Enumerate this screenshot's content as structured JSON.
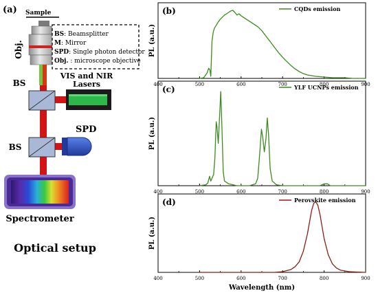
{
  "setup": {
    "panel_label": "(a)",
    "sample_label": "Sample",
    "obj_label": "Obj.",
    "legend": [
      {
        "abbr": "BS",
        "desc": ": Beamsplitter"
      },
      {
        "abbr": "M",
        "desc": ": Mirror"
      },
      {
        "abbr": "SPD",
        "desc": ": Single photon detector"
      },
      {
        "abbr": "Obj.",
        "desc": " : microscope objective"
      }
    ],
    "lasers_label_line1": "VIS and NIR",
    "lasers_label_line2": "Lasers",
    "bs_label": "BS",
    "spd_label": "SPD",
    "spectrometer_label": "Spectrometer",
    "caption": "Optical setup",
    "colors": {
      "beam": "#d21414",
      "laser_body": "#2cb84a",
      "spd_body": "#2f55c8",
      "bs_face": "#aab8d8"
    }
  },
  "chart_data": [
    {
      "type": "line",
      "panel_label": "(b)",
      "legend": "CQDs emission",
      "color": "#3a8a1e",
      "xlim": [
        400,
        900
      ],
      "x_ticks": [
        400,
        500,
        600,
        700,
        800,
        900
      ],
      "ylabel": "PL (a.u.)",
      "xlabel": "",
      "x": [
        500,
        510,
        518,
        522,
        525,
        527,
        530,
        533,
        536,
        540,
        545,
        550,
        555,
        560,
        565,
        570,
        575,
        580,
        585,
        590,
        595,
        600,
        610,
        620,
        630,
        640,
        650,
        660,
        670,
        680,
        690,
        700,
        710,
        720,
        730,
        740,
        750,
        760,
        780,
        800,
        820,
        850,
        870,
        900
      ],
      "y": [
        0.0,
        0.01,
        0.08,
        0.15,
        0.12,
        0.03,
        0.55,
        0.68,
        0.74,
        0.78,
        0.83,
        0.87,
        0.9,
        0.93,
        0.95,
        0.97,
        0.99,
        1.0,
        0.97,
        0.93,
        0.95,
        0.92,
        0.88,
        0.84,
        0.8,
        0.76,
        0.7,
        0.62,
        0.54,
        0.46,
        0.38,
        0.31,
        0.25,
        0.19,
        0.14,
        0.1,
        0.07,
        0.05,
        0.03,
        0.02,
        0.01,
        0.01,
        0.0,
        0.0
      ]
    },
    {
      "type": "line",
      "panel_label": "(c)",
      "legend": "YLF UCNPs emission",
      "color": "#3a8a1e",
      "xlim": [
        400,
        900
      ],
      "x_ticks": [
        400,
        500,
        600,
        700,
        800,
        900
      ],
      "ylabel": "PL (a.u.)",
      "xlabel": "",
      "x": [
        500,
        515,
        520,
        524,
        527,
        530,
        534,
        537,
        540,
        542,
        545,
        548,
        551,
        554,
        557,
        560,
        570,
        590,
        620,
        635,
        640,
        645,
        649,
        652,
        656,
        660,
        663,
        666,
        670,
        675,
        685,
        700,
        790,
        800,
        808,
        815,
        900
      ],
      "y": [
        0.0,
        0.01,
        0.03,
        0.1,
        0.05,
        0.08,
        0.12,
        0.3,
        0.68,
        0.62,
        0.45,
        0.72,
        1.0,
        0.6,
        0.15,
        0.05,
        0.02,
        0.0,
        0.0,
        0.02,
        0.08,
        0.35,
        0.6,
        0.52,
        0.36,
        0.5,
        0.72,
        0.55,
        0.18,
        0.05,
        0.01,
        0.0,
        0.0,
        0.02,
        0.02,
        0.0,
        0.0
      ]
    },
    {
      "type": "line",
      "panel_label": "(d)",
      "legend": "Perovskite emission",
      "color": "#8b1c10",
      "xlim": [
        400,
        900
      ],
      "x_ticks": [
        400,
        500,
        600,
        700,
        800,
        900
      ],
      "ylabel": "PL (a.u.)",
      "xlabel": "Wavelength (nm)",
      "x": [
        500,
        600,
        680,
        700,
        720,
        730,
        740,
        750,
        760,
        765,
        770,
        775,
        780,
        785,
        790,
        795,
        800,
        810,
        820,
        830,
        840,
        860,
        900
      ],
      "y": [
        0.0,
        0.0,
        0.0,
        0.01,
        0.04,
        0.08,
        0.15,
        0.3,
        0.55,
        0.72,
        0.88,
        0.98,
        1.0,
        0.95,
        0.82,
        0.65,
        0.48,
        0.25,
        0.12,
        0.06,
        0.03,
        0.01,
        0.0
      ]
    }
  ]
}
